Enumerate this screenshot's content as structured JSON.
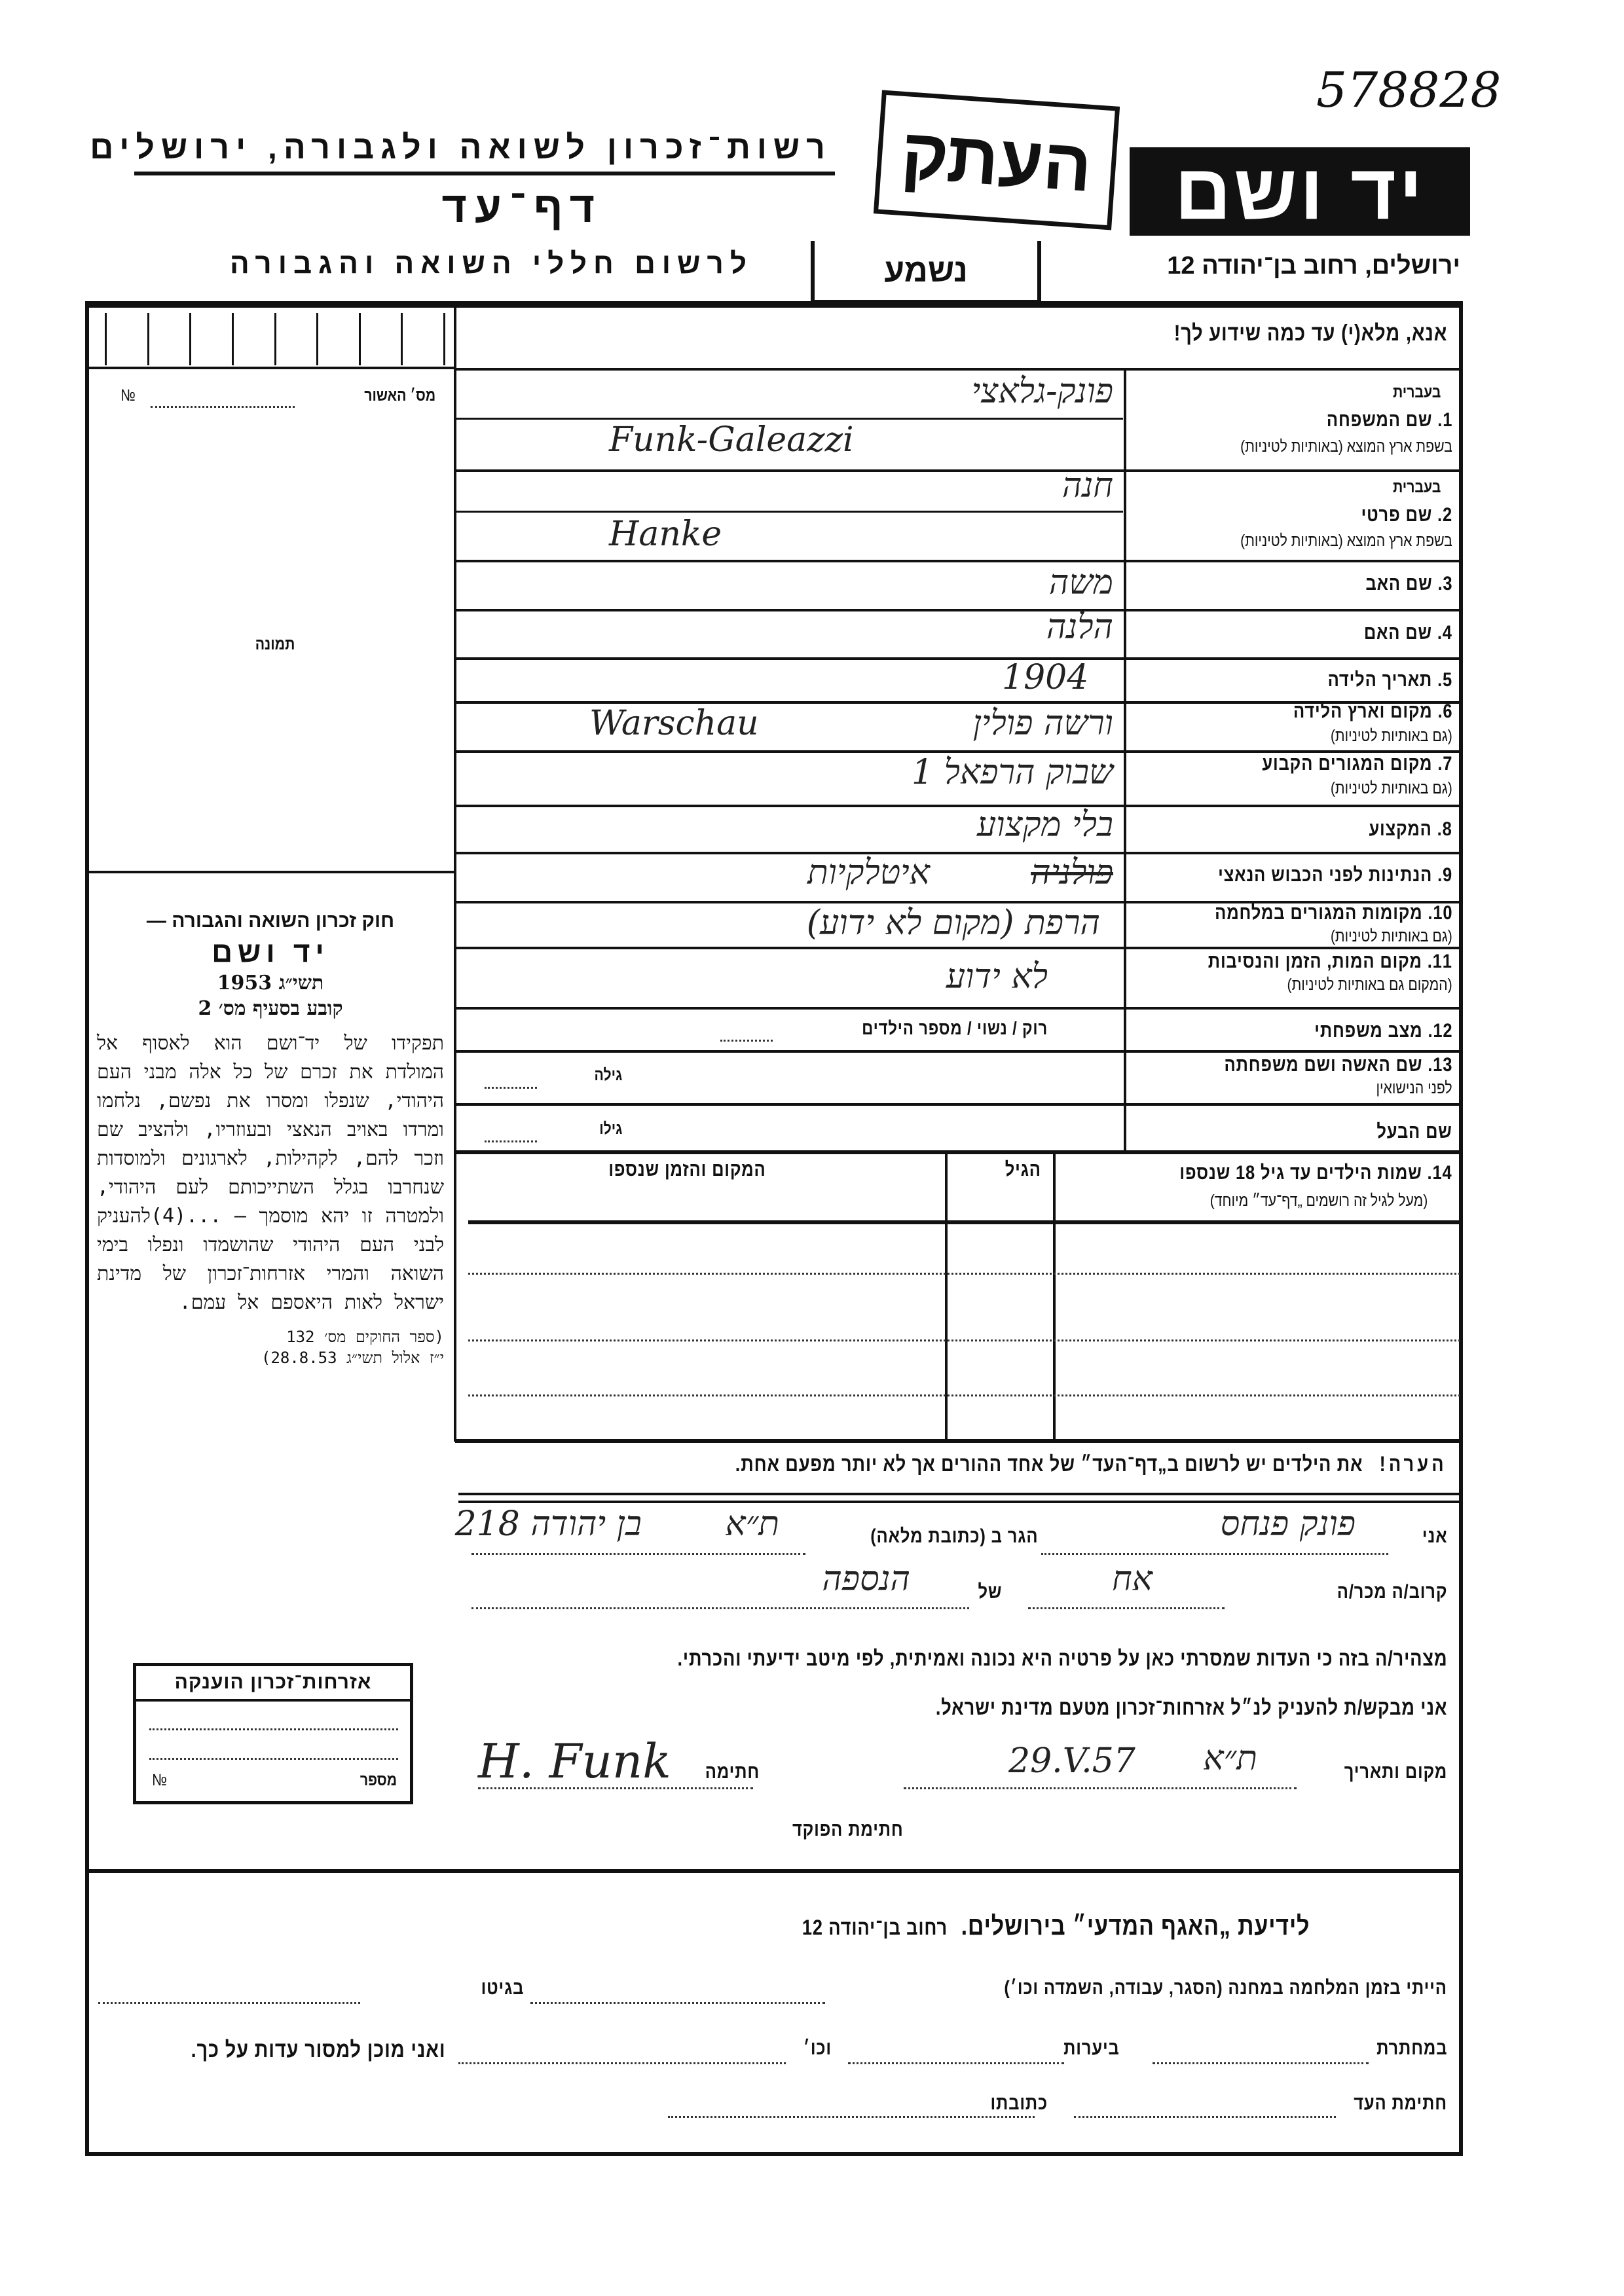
{
  "archive_number": "578828",
  "header": {
    "org_line": "רשות־זכרון לשואה ולגבורה, ירושלים",
    "form_title": "דף־עד",
    "subtitle": "לרשום חללי השואה והגבורה",
    "copy_stamp": "העתק",
    "logo": "יד ושם",
    "small_stamp": "נשמע",
    "address": "ירושלים, רחוב בן־יהודה 12"
  },
  "instruction": "אנא, מלא(י) עד כמה שידוע לך!",
  "left_column": {
    "approval_label": "מס׳ האשור",
    "approval_no_sign": "№",
    "photo_label": "תמונה",
    "law_title": "חוק זכרון השואה והגבורה —",
    "law_name": "יד ושם",
    "law_year": "תשי״ג 1953",
    "law_clause": "קובע בסעיף מס׳ 2",
    "law_text": "תפקידו של יד־ושם הוא לאסוף אל המולדת את זכרם של כל אלה מבני העם היהודי, שנפלו ומסרו את נפשם, נלחמו ומרדו באויב הנאצי ובעוזריו, ולהציב שם וזכר להם, לקהילות, לארגונים ולמוסדות שנחרבו בגלל השתייכותם לעם היהודי, ולמטרה זו יהא מוסמך — ...(4)להעניק לבני העם היהודי שהושמדו ונפלו בימי השואה והמרי אזרחות־זכרון של מדינת ישראל לאות היאספם אל עמם.",
    "law_ref_1": "(ספר החוקים מס׳ 132",
    "law_ref_2": "י״ז אלול תשי״ג 28.8.53)",
    "citizenship_box_title": "אזרחות־זכרון הוענקה",
    "citizenship_box_number": "מספר",
    "citizenship_box_no_sign": "№"
  },
  "fields": [
    {
      "num": "1.",
      "label": "שם המשפחה",
      "sub": "בשפת ארץ המוצא (באותיות לטיניות)",
      "hebrew_tag": "בעברית",
      "value_he": "פונק-גלאצי",
      "value_latin": "Funk-Galeazzi"
    },
    {
      "num": "2.",
      "label": "שם פרטי",
      "sub": "בשפת ארץ המוצא (באותיות לטיניות)",
      "hebrew_tag": "בעברית",
      "value_he": "חנה",
      "value_latin": "Hanke"
    },
    {
      "num": "3.",
      "label": "שם האב",
      "value": "משה"
    },
    {
      "num": "4.",
      "label": "שם האם",
      "value": "הלנה"
    },
    {
      "num": "5.",
      "label": "תאריך הלידה",
      "value": "1904"
    },
    {
      "num": "6.",
      "label": "מקום וארץ הלידה",
      "sub": "(גם באותיות לטיניות)",
      "value": "ורשה פולין",
      "value_latin": "Warschau"
    },
    {
      "num": "7.",
      "label": "מקום המגורים הקבוע",
      "sub": "(גם באותיות לטיניות)",
      "value": "שבוק הרפאל 1"
    },
    {
      "num": "8.",
      "label": "המקצוע",
      "value": "בלי מקצוע"
    },
    {
      "num": "9.",
      "label": "הנתינות לפני הכבוש הנאצי",
      "value_struck": "פולניה",
      "value": "איטלקיות"
    },
    {
      "num": "10.",
      "label": "מקומות המגורים במלחמה",
      "sub": "(גם באותיות לטיניות)",
      "value": "הרפת (מקום לא ידוע)"
    },
    {
      "num": "11.",
      "label": "מקום המות, הזמן והנסיבות",
      "sub": "(המקום גם באותיות לטיניות)",
      "value": "לא ידוע"
    },
    {
      "num": "12.",
      "label": "מצב משפחתי",
      "value": "רוק / נשוי / מספר הילדים"
    },
    {
      "num": "13.",
      "label": "שם האשה ושם משפחתה",
      "sub": "לפני הנישואין",
      "age_label": "גילה"
    },
    {
      "num": "",
      "label": "שם הבעל",
      "age_label": "גילו"
    }
  ],
  "children": {
    "label": "14. שמות הילדים עד גיל 18 שנספו",
    "sub": "(מעל לגיל זה רושמים „דף־עד״ מיוחד)",
    "col_age": "הגיל",
    "col_place": "המקום והזמן שנספו"
  },
  "note": {
    "title": "הערה!",
    "text": "את הילדים יש לרשום ב„דף־העד״ של אחד ההורים אך לא יותר מפעם אחת."
  },
  "declaration": {
    "i_label": "אני",
    "i_value": "פונק פנחס",
    "residing_label": "הגר ב (כתובת מלאה)",
    "city_value": "ת״א",
    "address_value": "בן יהודה 218",
    "relative_label": "קרוב/ה מכר/ה",
    "relation_value": "אח",
    "of_label": "של",
    "of_value": "הנספה",
    "statement": "מצהיר/ה בזה כי העדות שמסרתי כאן על פרטיה היא נכונה ואמיתית, לפי מיטב ידיעתי והכרתי.",
    "request": "אני מבקש/ת להעניק לנ״ל אזרחות־זכרון מטעם מדינת ישראל.",
    "place_date_label": "מקום ותאריך",
    "place_value": "ת״א",
    "date_value": "29.V.57",
    "signature_label": "חתימה",
    "signature_value": "H. Funk",
    "official_signature_label": "חתימת הפוקד"
  },
  "bottom": {
    "title": "לידיעת „האגף המדעי״ בירושלים.",
    "address": "רחוב בן־יהודה 12",
    "line1_a": "הייתי בזמן המלחמה במחנה (הסגר, עבודה, השמדה וכו׳)",
    "line1_b": "בגיטו",
    "line2_a": "במחתרת",
    "line2_b": "ביערות",
    "line2_c": "וכו׳",
    "line2_d": "ואני מוכן למסור עדות על כך.",
    "line3_a": "חתימת העד",
    "line3_b": "כתובתו"
  }
}
